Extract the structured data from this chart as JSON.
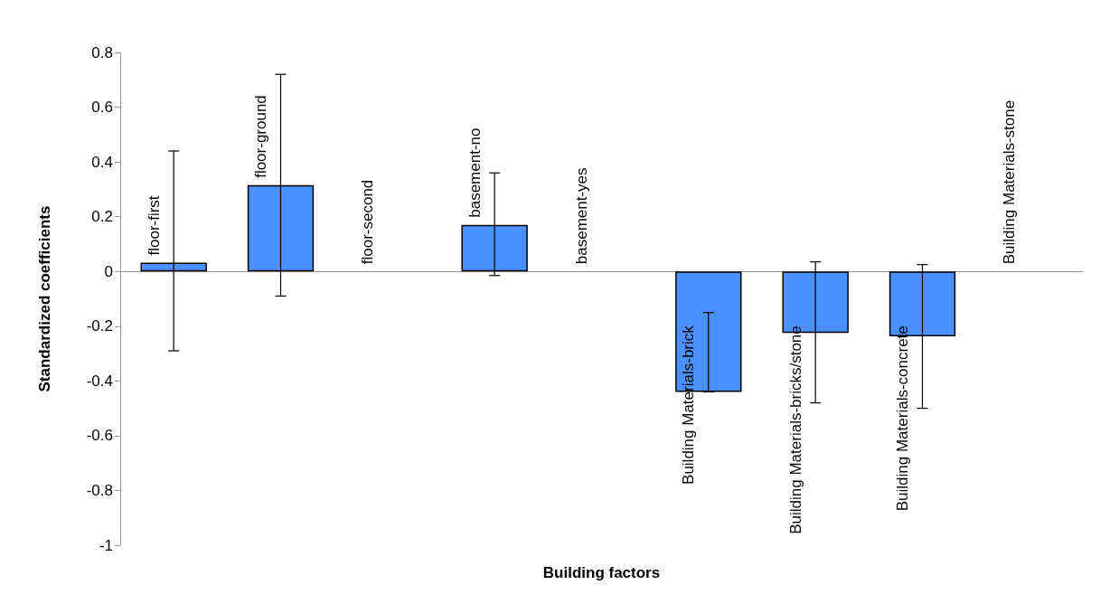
{
  "chart_data": {
    "type": "bar",
    "xlabel": "Building factors",
    "ylabel": "Standardized coefficients",
    "categories": [
      "floor-first",
      "floor-ground",
      "floor-second",
      "basement-no",
      "basement-yes",
      "Building Materials-brick",
      "Building Materials-bricks/stone",
      "Building Materials-concrete",
      "Building Materials-stone"
    ],
    "values": [
      0.032,
      0.315,
      0,
      0.17,
      0,
      -0.44,
      -0.225,
      -0.237,
      0
    ],
    "errors": [
      [
        -0.29,
        0.44
      ],
      [
        -0.09,
        0.72
      ],
      null,
      [
        -0.015,
        0.36
      ],
      null,
      [
        -0.44,
        -0.15
      ],
      [
        -0.48,
        0.035
      ],
      [
        -0.5,
        0.025
      ],
      null
    ],
    "color": "#4a90ff",
    "ylim": [
      -1,
      0.8
    ],
    "yticks": [
      -1,
      -0.8,
      -0.6,
      -0.4,
      -0.2,
      0,
      0.2,
      0.4,
      0.6,
      0.8
    ],
    "grid": false
  }
}
